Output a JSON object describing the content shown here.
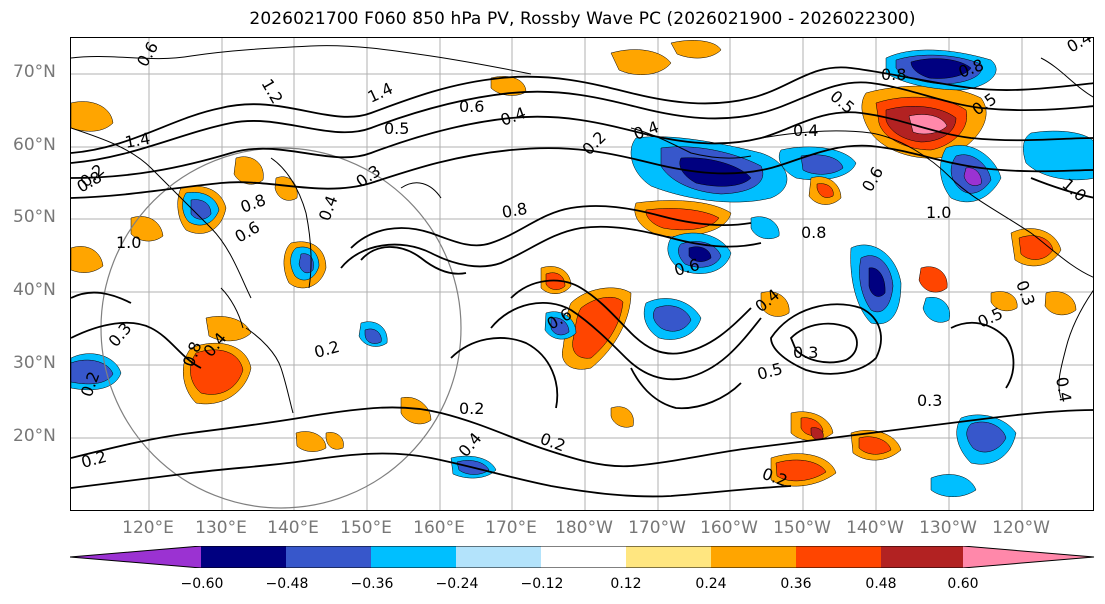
{
  "title": "2026021700 F060 850 hPa PV, Rossby Wave PC (2026021900 - 2026022300)",
  "lat_labels": [
    "70°N",
    "60°N",
    "50°N",
    "40°N",
    "30°N",
    "20°N"
  ],
  "lon_labels": [
    "120°E",
    "130°E",
    "140°E",
    "150°E",
    "160°E",
    "170°E",
    "180°W",
    "170°W",
    "160°W",
    "150°W",
    "140°W",
    "130°W",
    "120°W"
  ],
  "colorbar": {
    "ticks": [
      "−0.60",
      "−0.48",
      "−0.36",
      "−0.24",
      "−0.12",
      "0.12",
      "0.24",
      "0.36",
      "0.48",
      "0.60"
    ],
    "colors": [
      "#9b32d2",
      "#000080",
      "#3757cb",
      "#00bfff",
      "#b3e3fb",
      "#ffffff",
      "#ffe680",
      "#ffa500",
      "#ff4500",
      "#b22222",
      "#ff88aa"
    ]
  },
  "contour_labels": [
    "0.6",
    "1.2",
    "1.4",
    "0.6",
    "0.4",
    "0.5",
    "0.2",
    "0.5",
    "0.8",
    "0.4",
    "1.0",
    "0.5",
    "0.4",
    "0.8",
    "1.4",
    "1.0",
    "0.8",
    "0.6",
    "0.3",
    "0.4",
    "0.8",
    "0.8",
    "0.6",
    "1.0",
    "0.8",
    "0.6",
    "0.4",
    "0.3",
    "0.5",
    "0.3",
    "0.3",
    "0.5",
    "0.2",
    "0.2",
    "0.2",
    "0.2",
    "0.2",
    "0.8",
    "0.4",
    "0.3",
    "0.2",
    "0.4",
    "0.2",
    "0.6",
    "0.4",
    "0.4"
  ],
  "map_elements": {
    "fill_colors": {
      "orange": "#ffa500",
      "red": "#ff4500",
      "darkred": "#b22222",
      "pink": "#ff88aa",
      "yellow": "#ffe680",
      "navy": "#000080",
      "blue": "#3757cb",
      "cyan": "#00bfff",
      "lightblue": "#b3e3fb",
      "purple": "#9b32d2"
    }
  }
}
